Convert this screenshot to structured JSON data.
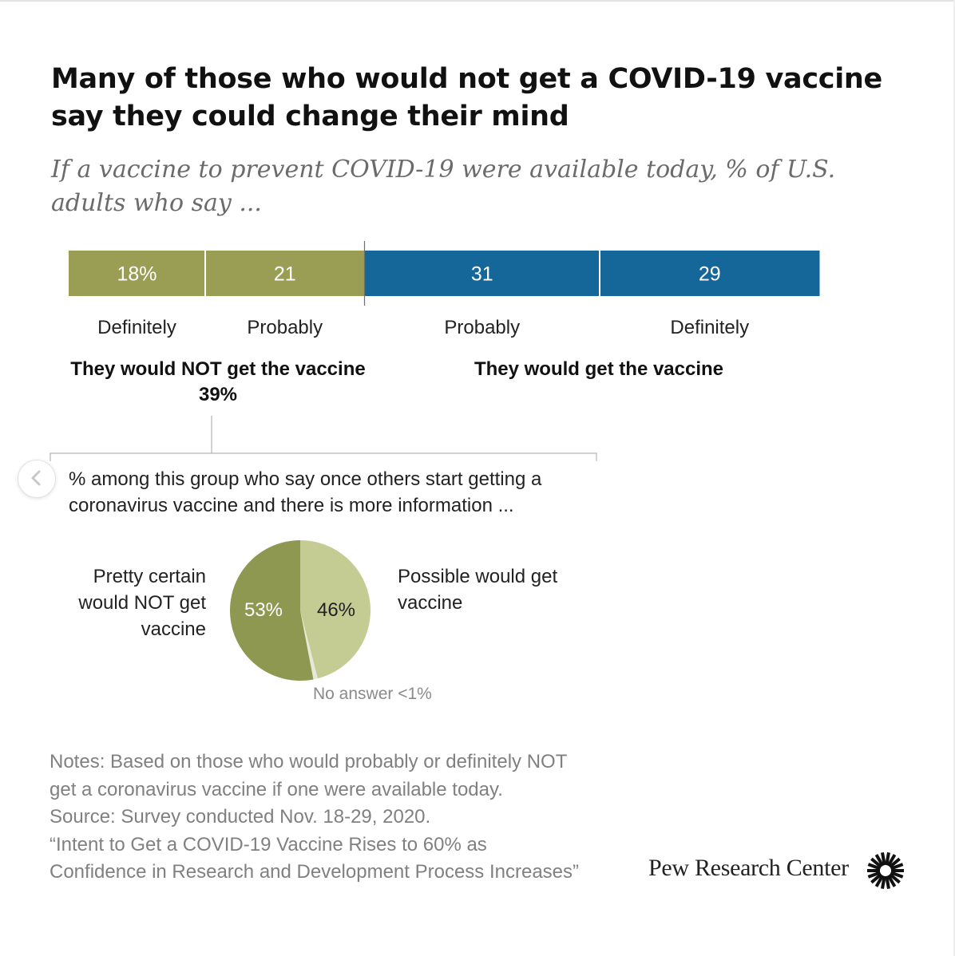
{
  "title": "Many of those who would not get a COVID-19 vaccine say they could change their mind",
  "subtitle": "If a vaccine to prevent COVID-19 were available today, % of U.S. adults who say ...",
  "colors": {
    "olive": "#9a9e55",
    "blue": "#15679a",
    "pie_dark": "#8e9850",
    "pie_light": "#c4cb93",
    "pie_no_answer": "#e6e8d8"
  },
  "chart_data": [
    {
      "type": "bar",
      "orientation": "horizontal-stacked",
      "title": "If a vaccine to prevent COVID-19 were available today, % of U.S. adults who say ...",
      "categories": [
        "Definitely",
        "Probably",
        "Probably",
        "Definitely"
      ],
      "values": [
        18,
        21,
        31,
        29
      ],
      "value_labels": [
        "18%",
        "21",
        "31",
        "29"
      ],
      "groups": [
        {
          "name": "They would NOT get the vaccine",
          "total_label": "39%",
          "members": [
            0,
            1
          ]
        },
        {
          "name": "They would get the vaccine",
          "total_label": "",
          "members": [
            2,
            3
          ]
        }
      ],
      "xlim": [
        0,
        100
      ]
    },
    {
      "type": "pie",
      "title": "% among this group who say once others start getting a coronavirus vaccine and there is more information ...",
      "slices": [
        {
          "label": "Possible would get vaccine",
          "value": 46,
          "value_label": "46%"
        },
        {
          "label": "No answer",
          "value": 1,
          "value_label": "<1%"
        },
        {
          "label": "Pretty certain would NOT get vaccine",
          "value": 53,
          "value_label": "53%"
        }
      ]
    }
  ],
  "labels": {
    "pie_left": "Pretty certain would NOT get vaccine",
    "pie_right": "Possible would get vaccine",
    "no_answer": "No answer <1%"
  },
  "notes": [
    "Notes: Based on those who would probably or definitely NOT",
    "get a coronavirus vaccine if one were available today.",
    "Source: Survey conducted Nov. 18-29, 2020.",
    "“Intent to Get a COVID-19 Vaccine Rises to 60% as",
    "Confidence in Research and Development Process Increases”"
  ],
  "brand": {
    "name": "Pew Research Center",
    "logo_icon": "pew-sunburst-icon"
  },
  "carousel": {
    "prev_icon": "chevron-left-icon"
  }
}
